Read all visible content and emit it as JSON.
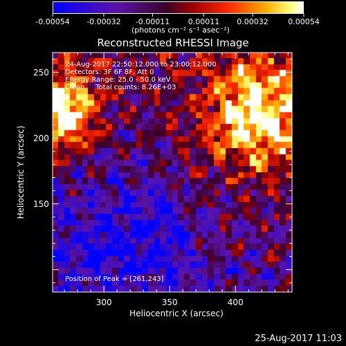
{
  "colorbar": {
    "tick_labels": [
      "-0.00054",
      "-0.00032",
      "-0.00011",
      "0.00011",
      "0.00032",
      "0.00054"
    ],
    "unit_label": "(photons cm⁻² s⁻¹ asec⁻²)",
    "vmin": -0.00054,
    "vmax": 0.00054
  },
  "plot": {
    "title": "Reconstructed RHESSI Image",
    "info": [
      "24-Aug-2017 22:50:12.000 to 23:00:12.000",
      "Detectors: 3F 6F 8F, Att 0",
      "Energy Range: 25.0 - 50.0 keV",
      "Clean     Total counts: 8.26E+03"
    ],
    "peak_text": "Position of Peak = [261,243]",
    "footer_date": "25-Aug-2017 11:03"
  },
  "chart_data": {
    "type": "heatmap",
    "title": "Reconstructed RHESSI Image",
    "xlabel": "Heliocentric X (arcsec)",
    "ylabel": "Heliocentric Y (arcsec)",
    "xlim": [
      261,
      443
    ],
    "ylim": [
      83,
      265
    ],
    "x_ticks": [
      300,
      350,
      400
    ],
    "y_ticks": [
      150,
      200,
      250
    ],
    "x_tick_labels": [
      "300",
      "350",
      "400"
    ],
    "y_tick_labels": [
      "150",
      "200",
      "250"
    ],
    "colorscale": "blue-purple-red-yellow-white",
    "value_range": [
      -0.00054,
      0.00054
    ],
    "peak_position": [
      261,
      243
    ],
    "pixel_grid": [
      40,
      40
    ]
  }
}
